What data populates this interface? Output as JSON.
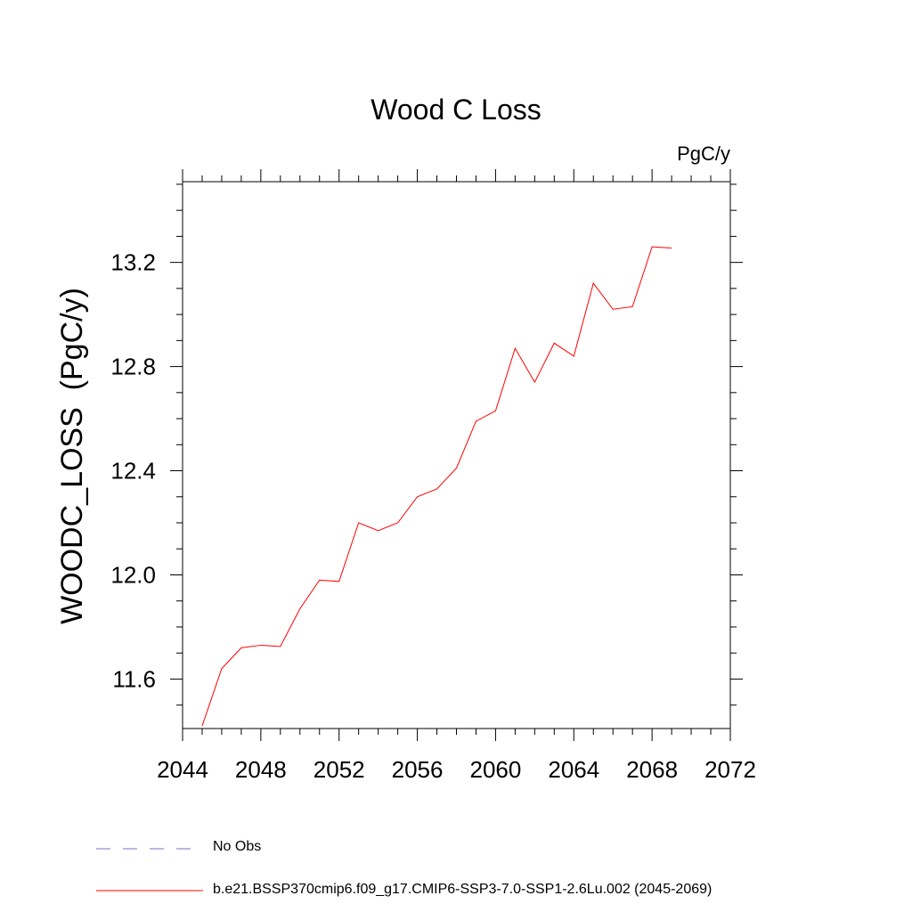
{
  "chart_data": {
    "type": "line",
    "title": "Wood C Loss",
    "units_label": "PgC/y",
    "xlabel": "",
    "ylabel": "WOODC_LOSS  (PgC/y)",
    "xlim": [
      2044,
      2072
    ],
    "ylim": [
      11.41,
      13.51
    ],
    "x_ticks": [
      2044,
      2048,
      2052,
      2056,
      2060,
      2064,
      2068,
      2072
    ],
    "x_tick_labels": [
      "2044",
      "2048",
      "2052",
      "2056",
      "2060",
      "2064",
      "2068",
      "2072"
    ],
    "y_ticks": [
      11.6,
      12.0,
      12.4,
      12.8,
      13.2
    ],
    "y_tick_labels": [
      "11.6",
      "12.0",
      "12.4",
      "12.8",
      "13.2"
    ],
    "grid": false,
    "series": [
      {
        "name": "b.e21.BSSP370cmip6.f09_g17.CMIP6-SSP3-7.0-SSP1-2.6Lu.002 (2045-2069)",
        "color": "#ff0000",
        "style": "solid",
        "x": [
          2045,
          2046,
          2047,
          2048,
          2049,
          2050,
          2051,
          2052,
          2053,
          2054,
          2055,
          2056,
          2057,
          2058,
          2059,
          2060,
          2061,
          2062,
          2063,
          2064,
          2065,
          2066,
          2067,
          2068,
          2069
        ],
        "values": [
          11.42,
          11.64,
          11.72,
          11.73,
          11.725,
          11.87,
          11.98,
          11.975,
          12.2,
          12.17,
          12.2,
          12.3,
          12.33,
          12.41,
          12.59,
          12.63,
          12.87,
          12.74,
          12.89,
          12.84,
          13.12,
          13.02,
          13.03,
          13.26,
          13.255
        ]
      }
    ],
    "legend": [
      {
        "label": "No Obs",
        "color": "#7b6fc4",
        "style": "dashed"
      },
      {
        "label": "b.e21.BSSP370cmip6.f09_g17.CMIP6-SSP3-7.0-SSP1-2.6Lu.002 (2045-2069)",
        "color": "#ff0000",
        "style": "solid"
      }
    ],
    "legend_placement": "bottom"
  }
}
